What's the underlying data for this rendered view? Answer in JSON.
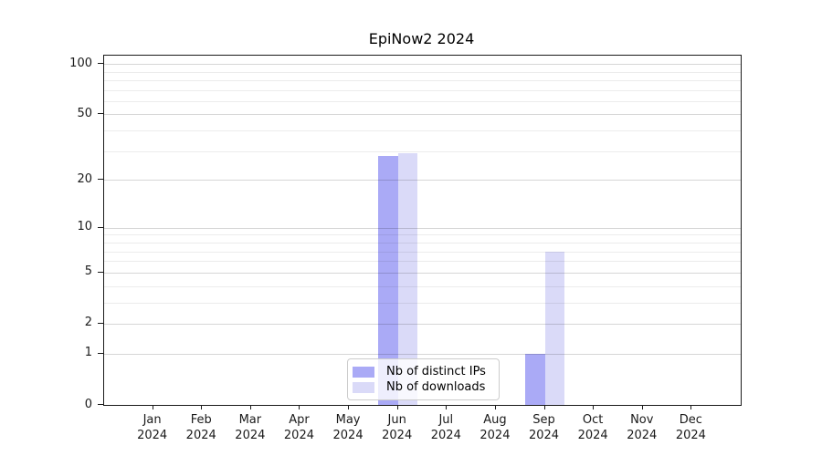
{
  "title": "EpiNow2 2024",
  "legend": {
    "items": [
      {
        "label": "Nb of distinct IPs",
        "color": "#aaaaf6"
      },
      {
        "label": "Nb of downloads",
        "color": "#dadaf8"
      }
    ]
  },
  "y_axis": {
    "tick_labels": [
      "0",
      "1",
      "2",
      "5",
      "10",
      "20",
      "50",
      "100"
    ]
  },
  "x_axis": {
    "year": "2024",
    "months": [
      "Jan",
      "Feb",
      "Mar",
      "Apr",
      "May",
      "Jun",
      "Jul",
      "Aug",
      "Sep",
      "Oct",
      "Nov",
      "Dec"
    ]
  },
  "chart_data": {
    "type": "bar",
    "title": "EpiNow2 2024",
    "categories": [
      "Jan 2024",
      "Feb 2024",
      "Mar 2024",
      "Apr 2024",
      "May 2024",
      "Jun 2024",
      "Jul 2024",
      "Aug 2024",
      "Sep 2024",
      "Oct 2024",
      "Nov 2024",
      "Dec 2024"
    ],
    "series": [
      {
        "name": "Nb of distinct IPs",
        "color": "#aaaaf6",
        "values": [
          0,
          0,
          0,
          0,
          0,
          28,
          0,
          0,
          1,
          0,
          0,
          0
        ]
      },
      {
        "name": "Nb of downloads",
        "color": "#dadaf8",
        "values": [
          0,
          0,
          0,
          0,
          0,
          29,
          0,
          0,
          7,
          0,
          0,
          0
        ]
      }
    ],
    "yscale": "log1p",
    "ylim": [
      0,
      112
    ],
    "yticks": [
      0,
      1,
      2,
      5,
      10,
      20,
      50,
      100
    ],
    "minor_yticks": [
      3,
      4,
      6,
      7,
      8,
      9,
      30,
      40,
      60,
      70,
      80,
      90
    ],
    "grid": "horizontal",
    "legend_position": "lower center inside"
  }
}
